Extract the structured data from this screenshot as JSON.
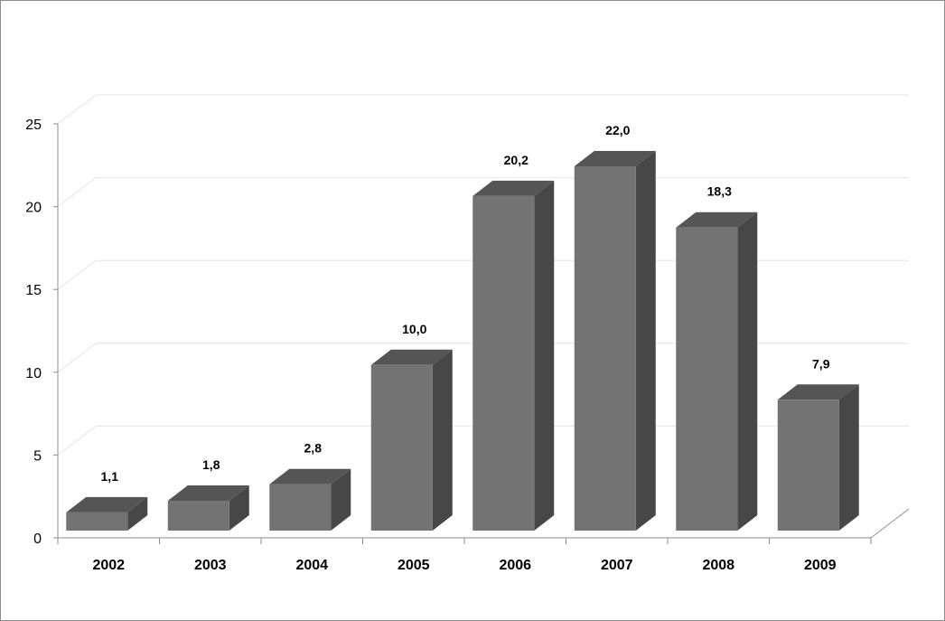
{
  "chart_data": {
    "type": "bar",
    "style": "3d-column",
    "categories": [
      "2002",
      "2003",
      "2004",
      "2005",
      "2006",
      "2007",
      "2008",
      "2009"
    ],
    "values": [
      1.1,
      1.8,
      2.8,
      10.0,
      20.2,
      22.0,
      18.3,
      7.9
    ],
    "data_labels": [
      "1,1",
      "1,8",
      "2,8",
      "10,0",
      "20,2",
      "22,0",
      "18,3",
      "7,9"
    ],
    "y_ticks": [
      "0",
      "5",
      "10",
      "15",
      "20",
      "25"
    ],
    "ylim": [
      0,
      25
    ],
    "grid": true,
    "legend": "none",
    "title": "",
    "xlabel": "",
    "ylabel": "",
    "colors": {
      "front": "#737373",
      "top": "#555555",
      "side": "#474747",
      "grid": "#e6e6e6",
      "axis": "#8c8c8c"
    }
  }
}
